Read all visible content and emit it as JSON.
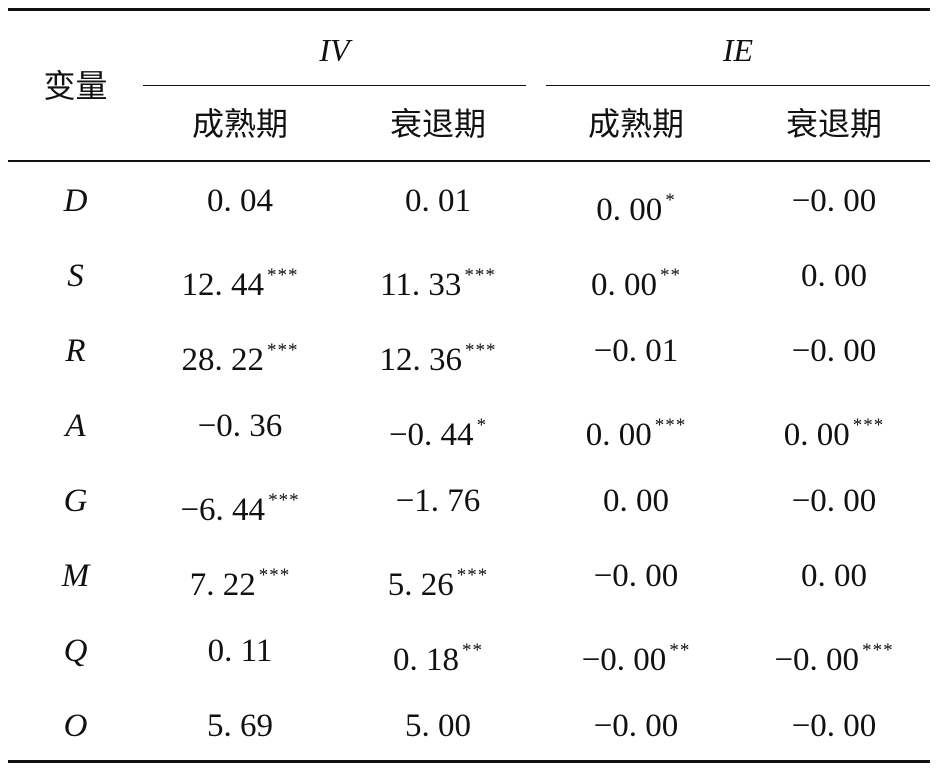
{
  "header": {
    "var_label": "变量",
    "groups": [
      "IV",
      "IE"
    ],
    "subcolumns": [
      "成熟期",
      "衰退期",
      "成熟期",
      "衰退期"
    ]
  },
  "rows": [
    {
      "var": "D",
      "cells": [
        {
          "v": "0. 04",
          "s": ""
        },
        {
          "v": "0. 01",
          "s": ""
        },
        {
          "v": "0. 00",
          "s": "*"
        },
        {
          "v": "−0. 00",
          "s": ""
        }
      ]
    },
    {
      "var": "S",
      "cells": [
        {
          "v": "12. 44",
          "s": "***"
        },
        {
          "v": "11. 33",
          "s": "***"
        },
        {
          "v": "0. 00",
          "s": "**"
        },
        {
          "v": "0. 00",
          "s": ""
        }
      ]
    },
    {
      "var": "R",
      "cells": [
        {
          "v": "28. 22",
          "s": "***"
        },
        {
          "v": "12. 36",
          "s": "***"
        },
        {
          "v": "−0. 01",
          "s": ""
        },
        {
          "v": "−0. 00",
          "s": ""
        }
      ]
    },
    {
      "var": "A",
      "cells": [
        {
          "v": "−0. 36",
          "s": ""
        },
        {
          "v": "−0. 44",
          "s": "*"
        },
        {
          "v": "0. 00",
          "s": "***"
        },
        {
          "v": "0. 00",
          "s": "***"
        }
      ]
    },
    {
      "var": "G",
      "cells": [
        {
          "v": "−6. 44",
          "s": "***"
        },
        {
          "v": "−1. 76",
          "s": ""
        },
        {
          "v": "0. 00",
          "s": ""
        },
        {
          "v": "−0. 00",
          "s": ""
        }
      ]
    },
    {
      "var": "M",
      "cells": [
        {
          "v": "7. 22",
          "s": "***"
        },
        {
          "v": "5. 26",
          "s": "***"
        },
        {
          "v": "−0. 00",
          "s": ""
        },
        {
          "v": "0. 00",
          "s": ""
        }
      ]
    },
    {
      "var": "Q",
      "cells": [
        {
          "v": "0. 11",
          "s": ""
        },
        {
          "v": "0. 18",
          "s": "**"
        },
        {
          "v": "−0. 00",
          "s": "**"
        },
        {
          "v": "−0. 00",
          "s": "***"
        }
      ]
    },
    {
      "var": "O",
      "cells": [
        {
          "v": "5. 69",
          "s": ""
        },
        {
          "v": "5. 00",
          "s": ""
        },
        {
          "v": "−0. 00",
          "s": ""
        },
        {
          "v": "−0. 00",
          "s": ""
        }
      ]
    }
  ]
}
